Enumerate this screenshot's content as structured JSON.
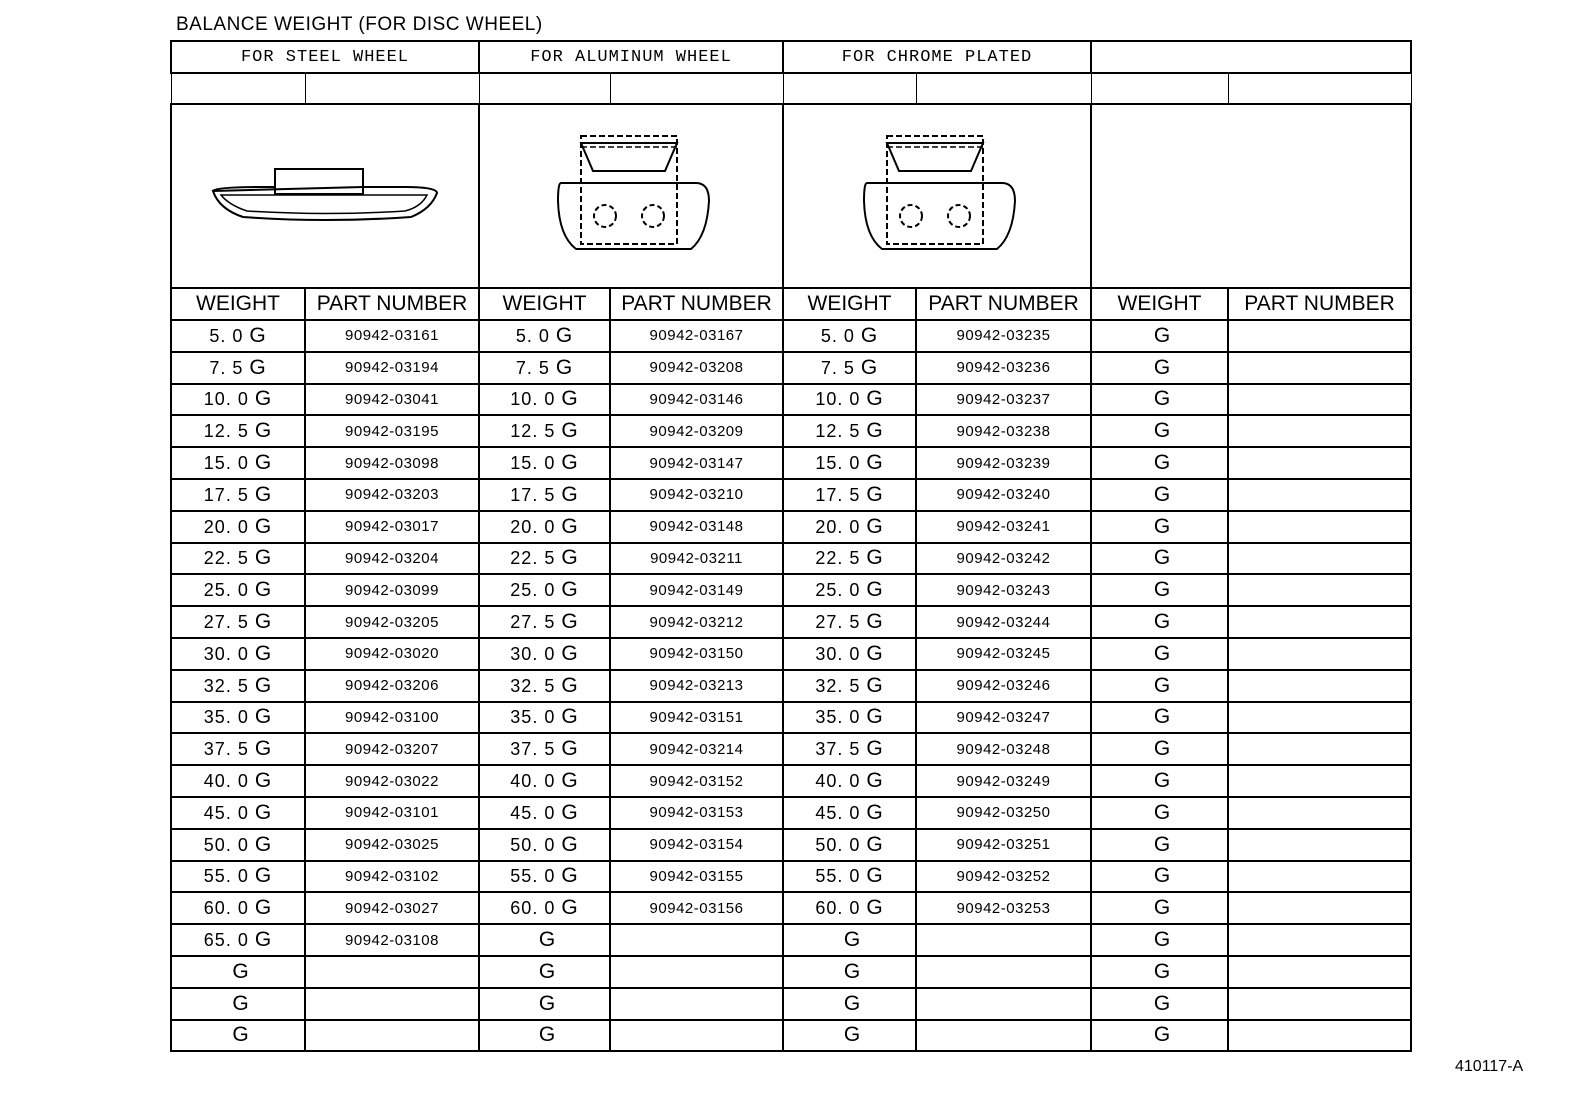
{
  "title": "BALANCE WEIGHT (FOR DISC WHEEL)",
  "figure_code": "410117-A",
  "groups": [
    "FOR STEEL WHEEL",
    "FOR ALUMINUM WHEEL",
    "FOR CHROME PLATED",
    ""
  ],
  "column_headers": {
    "weight": "WEIGHT",
    "part_number": "PART NUMBER"
  },
  "unit": "G",
  "drawings": [
    "clip-on-weight-steel-icon",
    "clip-on-weight-aluminum-icon",
    "clip-on-weight-chrome-icon"
  ],
  "rows": [
    {
      "steel_w": "5. 0",
      "steel_p": "90942-03161",
      "alu_w": "5. 0",
      "alu_p": "90942-03167",
      "chr_w": "5. 0",
      "chr_p": "90942-03235"
    },
    {
      "steel_w": "7. 5",
      "steel_p": "90942-03194",
      "alu_w": "7. 5",
      "alu_p": "90942-03208",
      "chr_w": "7. 5",
      "chr_p": "90942-03236"
    },
    {
      "steel_w": "10. 0",
      "steel_p": "90942-03041",
      "alu_w": "10. 0",
      "alu_p": "90942-03146",
      "chr_w": "10. 0",
      "chr_p": "90942-03237"
    },
    {
      "steel_w": "12. 5",
      "steel_p": "90942-03195",
      "alu_w": "12. 5",
      "alu_p": "90942-03209",
      "chr_w": "12. 5",
      "chr_p": "90942-03238"
    },
    {
      "steel_w": "15. 0",
      "steel_p": "90942-03098",
      "alu_w": "15. 0",
      "alu_p": "90942-03147",
      "chr_w": "15. 0",
      "chr_p": "90942-03239"
    },
    {
      "steel_w": "17. 5",
      "steel_p": "90942-03203",
      "alu_w": "17. 5",
      "alu_p": "90942-03210",
      "chr_w": "17. 5",
      "chr_p": "90942-03240"
    },
    {
      "steel_w": "20. 0",
      "steel_p": "90942-03017",
      "alu_w": "20. 0",
      "alu_p": "90942-03148",
      "chr_w": "20. 0",
      "chr_p": "90942-03241"
    },
    {
      "steel_w": "22. 5",
      "steel_p": "90942-03204",
      "alu_w": "22. 5",
      "alu_p": "90942-03211",
      "chr_w": "22. 5",
      "chr_p": "90942-03242"
    },
    {
      "steel_w": "25. 0",
      "steel_p": "90942-03099",
      "alu_w": "25. 0",
      "alu_p": "90942-03149",
      "chr_w": "25. 0",
      "chr_p": "90942-03243"
    },
    {
      "steel_w": "27. 5",
      "steel_p": "90942-03205",
      "alu_w": "27. 5",
      "alu_p": "90942-03212",
      "chr_w": "27. 5",
      "chr_p": "90942-03244"
    },
    {
      "steel_w": "30. 0",
      "steel_p": "90942-03020",
      "alu_w": "30. 0",
      "alu_p": "90942-03150",
      "chr_w": "30. 0",
      "chr_p": "90942-03245"
    },
    {
      "steel_w": "32. 5",
      "steel_p": "90942-03206",
      "alu_w": "32. 5",
      "alu_p": "90942-03213",
      "chr_w": "32. 5",
      "chr_p": "90942-03246"
    },
    {
      "steel_w": "35. 0",
      "steel_p": "90942-03100",
      "alu_w": "35. 0",
      "alu_p": "90942-03151",
      "chr_w": "35. 0",
      "chr_p": "90942-03247"
    },
    {
      "steel_w": "37. 5",
      "steel_p": "90942-03207",
      "alu_w": "37. 5",
      "alu_p": "90942-03214",
      "chr_w": "37. 5",
      "chr_p": "90942-03248"
    },
    {
      "steel_w": "40. 0",
      "steel_p": "90942-03022",
      "alu_w": "40. 0",
      "alu_p": "90942-03152",
      "chr_w": "40. 0",
      "chr_p": "90942-03249"
    },
    {
      "steel_w": "45. 0",
      "steel_p": "90942-03101",
      "alu_w": "45. 0",
      "alu_p": "90942-03153",
      "chr_w": "45. 0",
      "chr_p": "90942-03250"
    },
    {
      "steel_w": "50. 0",
      "steel_p": "90942-03025",
      "alu_w": "50. 0",
      "alu_p": "90942-03154",
      "chr_w": "50. 0",
      "chr_p": "90942-03251"
    },
    {
      "steel_w": "55. 0",
      "steel_p": "90942-03102",
      "alu_w": "55. 0",
      "alu_p": "90942-03155",
      "chr_w": "55. 0",
      "chr_p": "90942-03252"
    },
    {
      "steel_w": "60. 0",
      "steel_p": "90942-03027",
      "alu_w": "60. 0",
      "alu_p": "90942-03156",
      "chr_w": "60. 0",
      "chr_p": "90942-03253"
    },
    {
      "steel_w": "65. 0",
      "steel_p": "90942-03108",
      "alu_w": "",
      "alu_p": "",
      "chr_w": "",
      "chr_p": ""
    },
    {
      "steel_w": "",
      "steel_p": "",
      "alu_w": "",
      "alu_p": "",
      "chr_w": "",
      "chr_p": ""
    },
    {
      "steel_w": "",
      "steel_p": "",
      "alu_w": "",
      "alu_p": "",
      "chr_w": "",
      "chr_p": ""
    },
    {
      "steel_w": "",
      "steel_p": "",
      "alu_w": "",
      "alu_p": "",
      "chr_w": "",
      "chr_p": ""
    }
  ]
}
